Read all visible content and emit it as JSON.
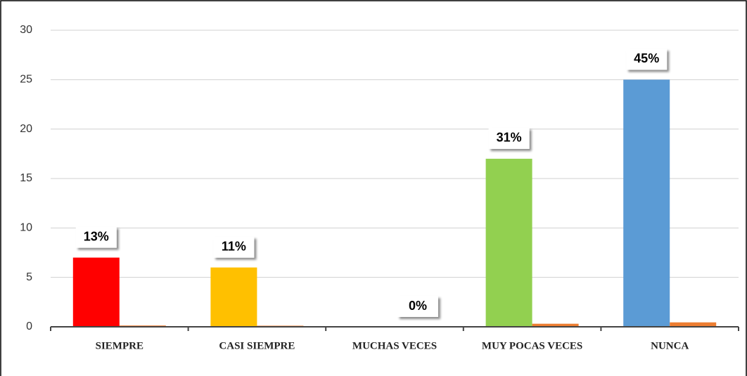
{
  "chart_data": {
    "type": "bar",
    "categories": [
      "SIEMPRE",
      "CASI SIEMPRE",
      "MUCHAS VECES",
      "MUY POCAS VECES",
      "NUNCA"
    ],
    "series": [
      {
        "colors": [
          "#ff0000",
          "#ffc000",
          "#ffc000",
          "#92d050",
          "#5b9bd5"
        ],
        "values": [
          7,
          6,
          0,
          17,
          25
        ]
      },
      {
        "color": "#ed7d31",
        "values": [
          0.13,
          0.11,
          0,
          0.31,
          0.45
        ],
        "value_labels": [
          "13%",
          "11%",
          "0%",
          "31%",
          "45%"
        ]
      }
    ],
    "ylim": [
      0,
      30
    ],
    "yticks": [
      0,
      5,
      10,
      15,
      20,
      25,
      30
    ],
    "grid": true
  }
}
